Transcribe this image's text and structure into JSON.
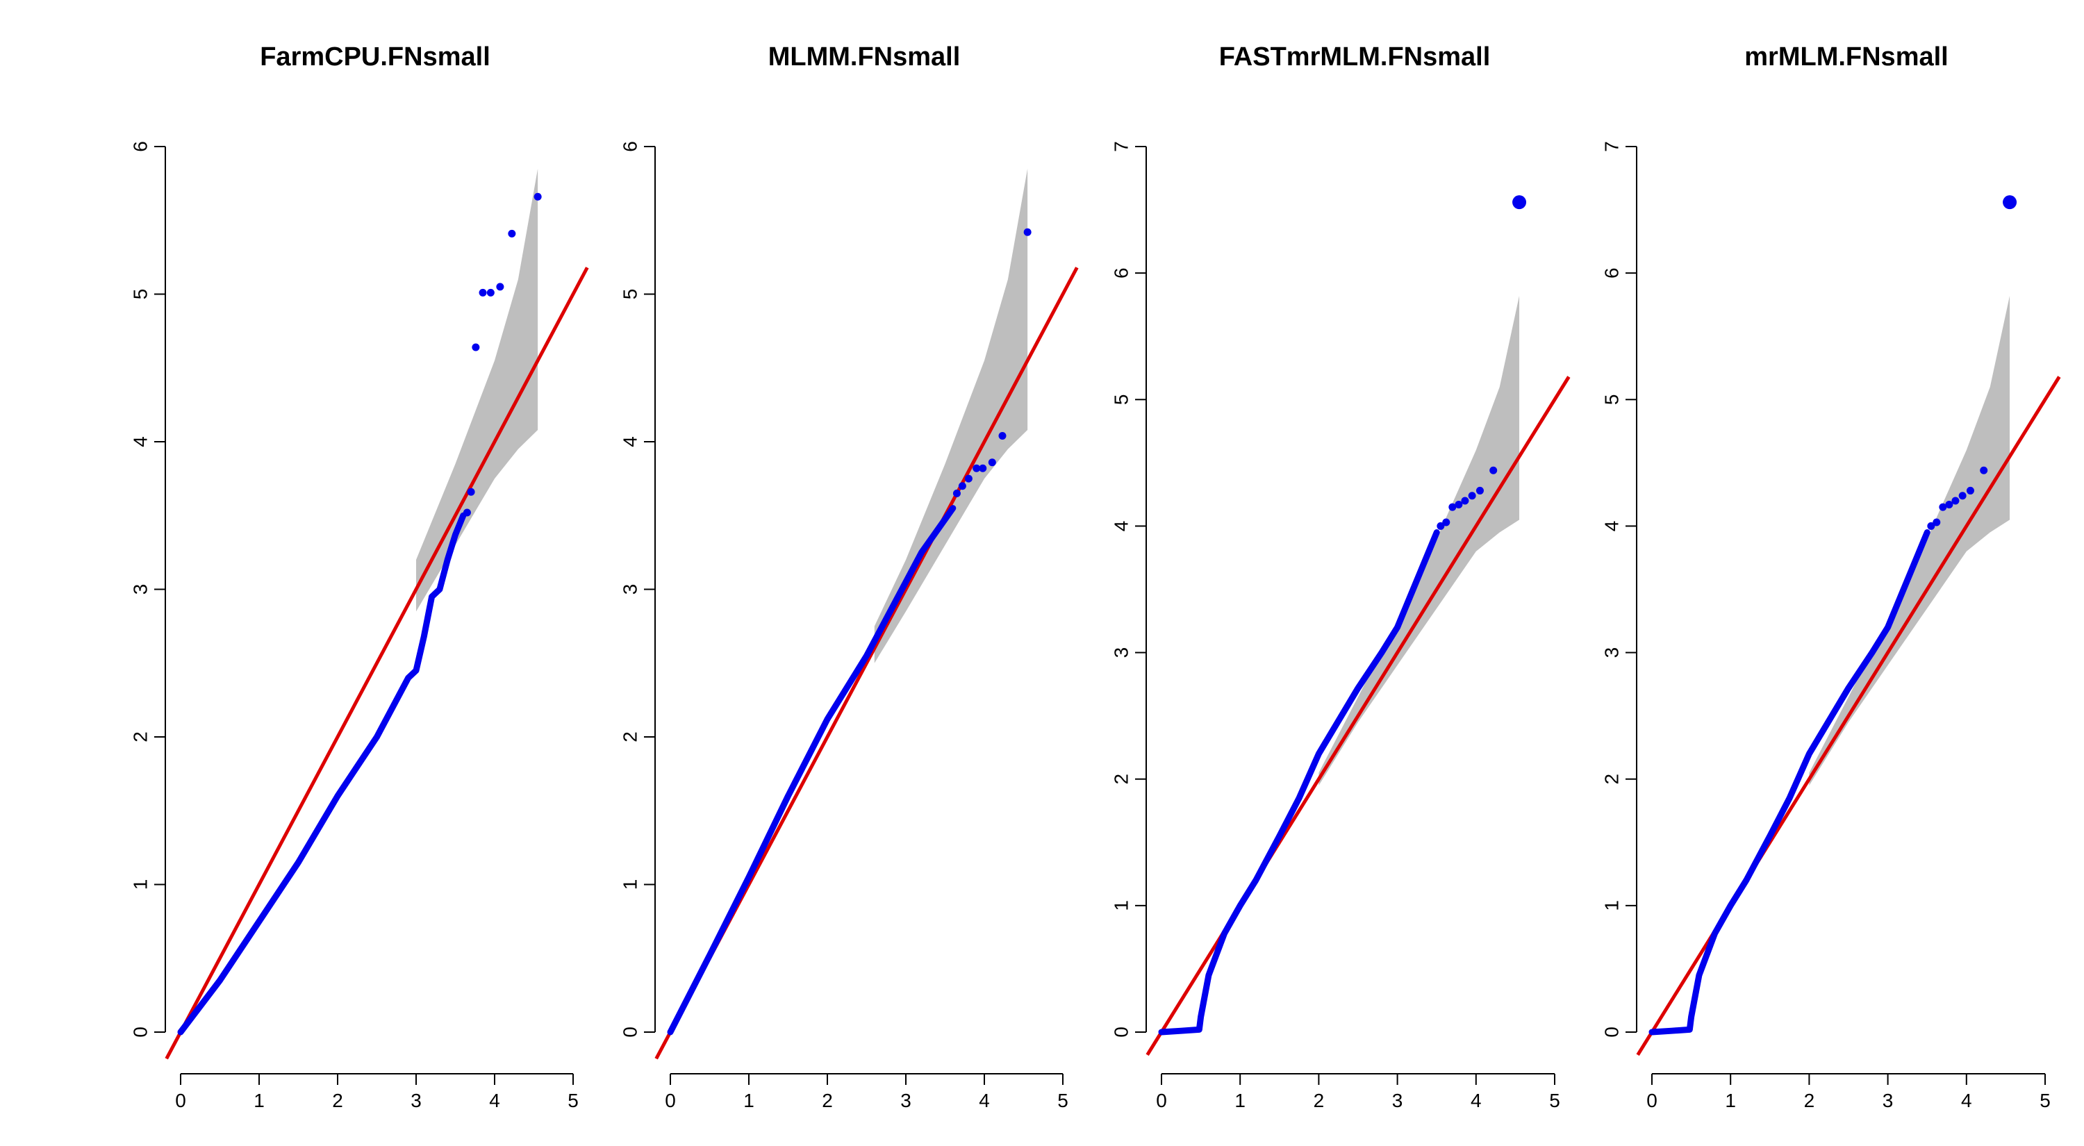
{
  "colors": {
    "points": "#0000ee",
    "reference_line": "#dd0000",
    "confidence_band": "#bebebe",
    "axis": "#000000"
  },
  "chart_data": [
    {
      "type": "scatter",
      "title": "FarmCPU.FNsmall",
      "xlabel": "",
      "ylabel": "",
      "xlim": [
        0,
        5
      ],
      "ylim": [
        0,
        6
      ],
      "x_ticks": [
        0,
        1,
        2,
        3,
        4,
        5
      ],
      "y_ticks": [
        0,
        1,
        2,
        3,
        4,
        5,
        6
      ],
      "grid": false,
      "reference_line": {
        "slope": 1,
        "intercept": 0
      },
      "confidence_band": {
        "x": [
          3.0,
          3.5,
          4.0,
          4.3,
          4.55
        ],
        "upper": [
          3.2,
          3.85,
          4.55,
          5.1,
          5.85
        ],
        "lower": [
          2.85,
          3.3,
          3.75,
          3.95,
          4.08
        ]
      },
      "curve": {
        "x": [
          0,
          0.5,
          1.0,
          1.5,
          2.0,
          2.5,
          2.75,
          2.9,
          3.0,
          3.1,
          3.2,
          3.3,
          3.4,
          3.5,
          3.6
        ],
        "y": [
          0,
          0.35,
          0.75,
          1.15,
          1.6,
          2.0,
          2.25,
          2.4,
          2.45,
          2.68,
          2.95,
          3.0,
          3.2,
          3.37,
          3.5
        ]
      },
      "points": {
        "x": [
          3.65,
          3.7,
          3.76,
          3.85,
          3.95,
          4.07,
          4.22,
          4.55
        ],
        "y": [
          3.52,
          3.66,
          4.64,
          5.01,
          5.01,
          5.05,
          5.41,
          5.66
        ]
      }
    },
    {
      "type": "scatter",
      "title": "MLMM.FNsmall",
      "xlabel": "",
      "ylabel": "",
      "xlim": [
        0,
        5
      ],
      "ylim": [
        0,
        6
      ],
      "x_ticks": [
        0,
        1,
        2,
        3,
        4,
        5
      ],
      "y_ticks": [
        0,
        1,
        2,
        3,
        4,
        5,
        6
      ],
      "grid": false,
      "reference_line": {
        "slope": 1,
        "intercept": 0
      },
      "confidence_band": {
        "x": [
          2.6,
          3.0,
          3.5,
          4.0,
          4.3,
          4.55
        ],
        "upper": [
          2.75,
          3.2,
          3.85,
          4.55,
          5.1,
          5.85
        ],
        "lower": [
          2.5,
          2.85,
          3.3,
          3.75,
          3.95,
          4.08
        ]
      },
      "curve": {
        "x": [
          0,
          0.5,
          1.0,
          1.5,
          2.0,
          2.5,
          2.8,
          3.0,
          3.2,
          3.4,
          3.6
        ],
        "y": [
          0,
          0.52,
          1.05,
          1.6,
          2.12,
          2.55,
          2.85,
          3.05,
          3.25,
          3.4,
          3.55
        ]
      },
      "points": {
        "x": [
          3.65,
          3.72,
          3.8,
          3.9,
          3.98,
          4.1,
          4.23,
          4.55
        ],
        "y": [
          3.65,
          3.7,
          3.75,
          3.82,
          3.82,
          3.86,
          4.04,
          5.42
        ]
      }
    },
    {
      "type": "scatter",
      "title": "FASTmrMLM.FNsmall",
      "xlabel": "",
      "ylabel": "",
      "xlim": [
        0,
        5
      ],
      "ylim": [
        0,
        7
      ],
      "x_ticks": [
        0,
        1,
        2,
        3,
        4,
        5
      ],
      "y_ticks": [
        0,
        1,
        2,
        3,
        4,
        5,
        6,
        7
      ],
      "grid": false,
      "reference_line": {
        "slope": 1,
        "intercept": 0
      },
      "confidence_band": {
        "x": [
          2.0,
          2.5,
          3.0,
          3.5,
          4.0,
          4.3,
          4.55
        ],
        "upper": [
          2.05,
          2.65,
          3.25,
          3.9,
          4.6,
          5.1,
          5.82
        ],
        "lower": [
          1.95,
          2.45,
          2.9,
          3.35,
          3.8,
          3.95,
          4.05
        ]
      },
      "curve": {
        "x": [
          0,
          0.25,
          0.48,
          0.5,
          0.6,
          0.8,
          1.0,
          1.2,
          1.5,
          1.75,
          2.0,
          2.5,
          2.8,
          3.0,
          3.1,
          3.2,
          3.3,
          3.4,
          3.5
        ],
        "y": [
          0,
          0.01,
          0.02,
          0.12,
          0.45,
          0.78,
          1.0,
          1.2,
          1.55,
          1.85,
          2.2,
          2.72,
          3.0,
          3.2,
          3.35,
          3.5,
          3.65,
          3.8,
          3.95
        ]
      },
      "points": {
        "x": [
          3.55,
          3.62,
          3.7,
          3.78,
          3.86,
          3.95,
          4.05,
          4.22
        ],
        "y": [
          4.0,
          4.03,
          4.15,
          4.17,
          4.2,
          4.24,
          4.28,
          4.44
        ]
      },
      "highlight_point": {
        "x": 4.55,
        "y": 6.56
      }
    },
    {
      "type": "scatter",
      "title": "mrMLM.FNsmall",
      "xlabel": "",
      "ylabel": "",
      "xlim": [
        0,
        5
      ],
      "ylim": [
        0,
        7
      ],
      "x_ticks": [
        0,
        1,
        2,
        3,
        4,
        5
      ],
      "y_ticks": [
        0,
        1,
        2,
        3,
        4,
        5,
        6,
        7
      ],
      "grid": false,
      "reference_line": {
        "slope": 1,
        "intercept": 0
      },
      "confidence_band": {
        "x": [
          2.0,
          2.5,
          3.0,
          3.5,
          4.0,
          4.3,
          4.55
        ],
        "upper": [
          2.05,
          2.65,
          3.25,
          3.9,
          4.6,
          5.1,
          5.82
        ],
        "lower": [
          1.95,
          2.45,
          2.9,
          3.35,
          3.8,
          3.95,
          4.05
        ]
      },
      "curve": {
        "x": [
          0,
          0.25,
          0.48,
          0.5,
          0.6,
          0.8,
          1.0,
          1.2,
          1.5,
          1.75,
          2.0,
          2.5,
          2.8,
          3.0,
          3.1,
          3.2,
          3.3,
          3.4,
          3.5
        ],
        "y": [
          0,
          0.01,
          0.02,
          0.12,
          0.45,
          0.78,
          1.0,
          1.2,
          1.55,
          1.85,
          2.2,
          2.72,
          3.0,
          3.2,
          3.35,
          3.5,
          3.65,
          3.8,
          3.95
        ]
      },
      "points": {
        "x": [
          3.55,
          3.62,
          3.7,
          3.78,
          3.86,
          3.95,
          4.05,
          4.22
        ],
        "y": [
          4.0,
          4.03,
          4.15,
          4.17,
          4.2,
          4.24,
          4.28,
          4.44
        ]
      },
      "highlight_point": {
        "x": 4.55,
        "y": 6.56
      }
    }
  ]
}
